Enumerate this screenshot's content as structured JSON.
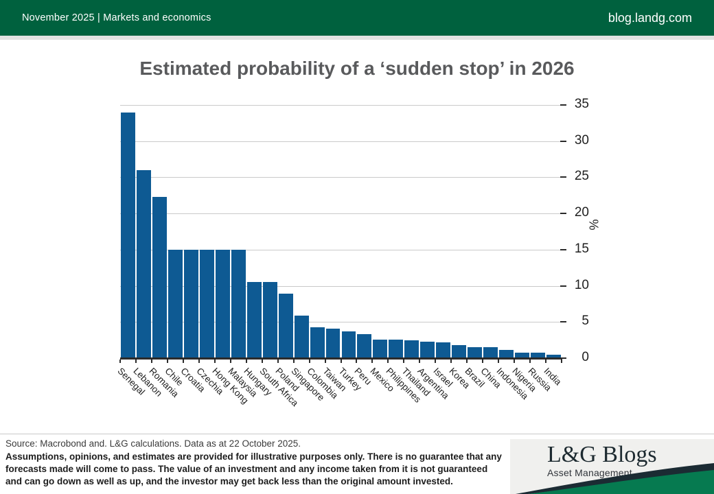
{
  "header": {
    "left": "November 2025 | Markets and economics",
    "right": "blog.landg.com"
  },
  "title": "Estimated probability of a ‘sudden stop’ in 2026",
  "chart_data": {
    "type": "bar",
    "title": "Estimated probability of a ‘sudden stop’ in 2026",
    "categories": [
      "Senegal",
      "Lebanon",
      "Romania",
      "Chile",
      "Croatia",
      "Czechia",
      "Hong Kong",
      "Malaysia",
      "Hungary",
      "South Africa",
      "Poland",
      "Singapore",
      "Colombia",
      "Taiwan",
      "Turkey",
      "Peru",
      "Mexico",
      "Philippines",
      "Thailand",
      "Argentina",
      "Israel",
      "Korea",
      "Brazil",
      "China",
      "Indonesia",
      "Nigeria",
      "Russia",
      "India"
    ],
    "values": [
      34,
      26,
      22.3,
      15,
      15,
      15,
      15,
      15,
      10.5,
      10.5,
      8.9,
      5.9,
      4.3,
      4.1,
      3.7,
      3.3,
      2.6,
      2.6,
      2.5,
      2.3,
      2.2,
      1.8,
      1.5,
      1.5,
      1.1,
      0.8,
      0.8,
      0.5
    ],
    "xlabel": "",
    "ylabel": "%",
    "ylim": [
      0,
      35
    ],
    "yticks": [
      0,
      5,
      10,
      15,
      20,
      25,
      30,
      35
    ],
    "grid": true,
    "legend": "none",
    "bar_color": "#0e5a93"
  },
  "footer": {
    "source": "Source: Macrobond and. L&G calculations. Data as at 22 October 2025.",
    "disclaimer_lines": [
      "Assumptions, opinions, and estimates are provided for illustrative purposes only. There is no guarantee that any",
      "forecasts made will come to pass. The value of an investment and any income taken from it is not guaranteed",
      "and can go down as well as up, and the investor may get back less than the original amount invested."
    ],
    "logo": {
      "title": "L&G Blogs",
      "subtitle": "Asset Management"
    }
  },
  "colors": {
    "header_green": "#00613E",
    "bar_blue": "#0e5a93",
    "swoosh_green": "#067a50",
    "swoosh_navy": "#1b2b33",
    "title_gray": "#595a5c"
  }
}
